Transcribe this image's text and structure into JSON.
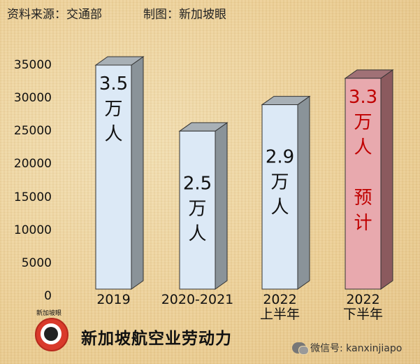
{
  "header": {
    "source": "资料来源：交通部",
    "credit": "制图：新加坡眼"
  },
  "footer": {
    "title": "新加坡航空业劳动力",
    "logo_text": "新加坡眼",
    "wechat": "微信号: kanxinjiapo"
  },
  "chart_data": {
    "type": "bar",
    "title": "新加坡航空业劳动力",
    "ylim": [
      0,
      35000
    ],
    "yticks": [
      35000,
      30000,
      25000,
      20000,
      15000,
      10000,
      5000,
      0
    ],
    "categories": [
      "2019",
      "2020-2021",
      "2022\n上半年",
      "2022\n下半年"
    ],
    "values": [
      35000,
      25000,
      29000,
      33000
    ],
    "bar_labels": [
      "3.5\n万\n人",
      "2.5\n万\n人",
      "2.9\n万\n人",
      "3.3\n万\n人\n\n预\n计"
    ],
    "label_colors": [
      "#111111",
      "#111111",
      "#111111",
      "#c00000"
    ],
    "bar_colors": [
      "#dce9f6",
      "#dce9f6",
      "#dce9f6",
      "#e8a9ae"
    ],
    "grid": false,
    "legend": "none"
  }
}
